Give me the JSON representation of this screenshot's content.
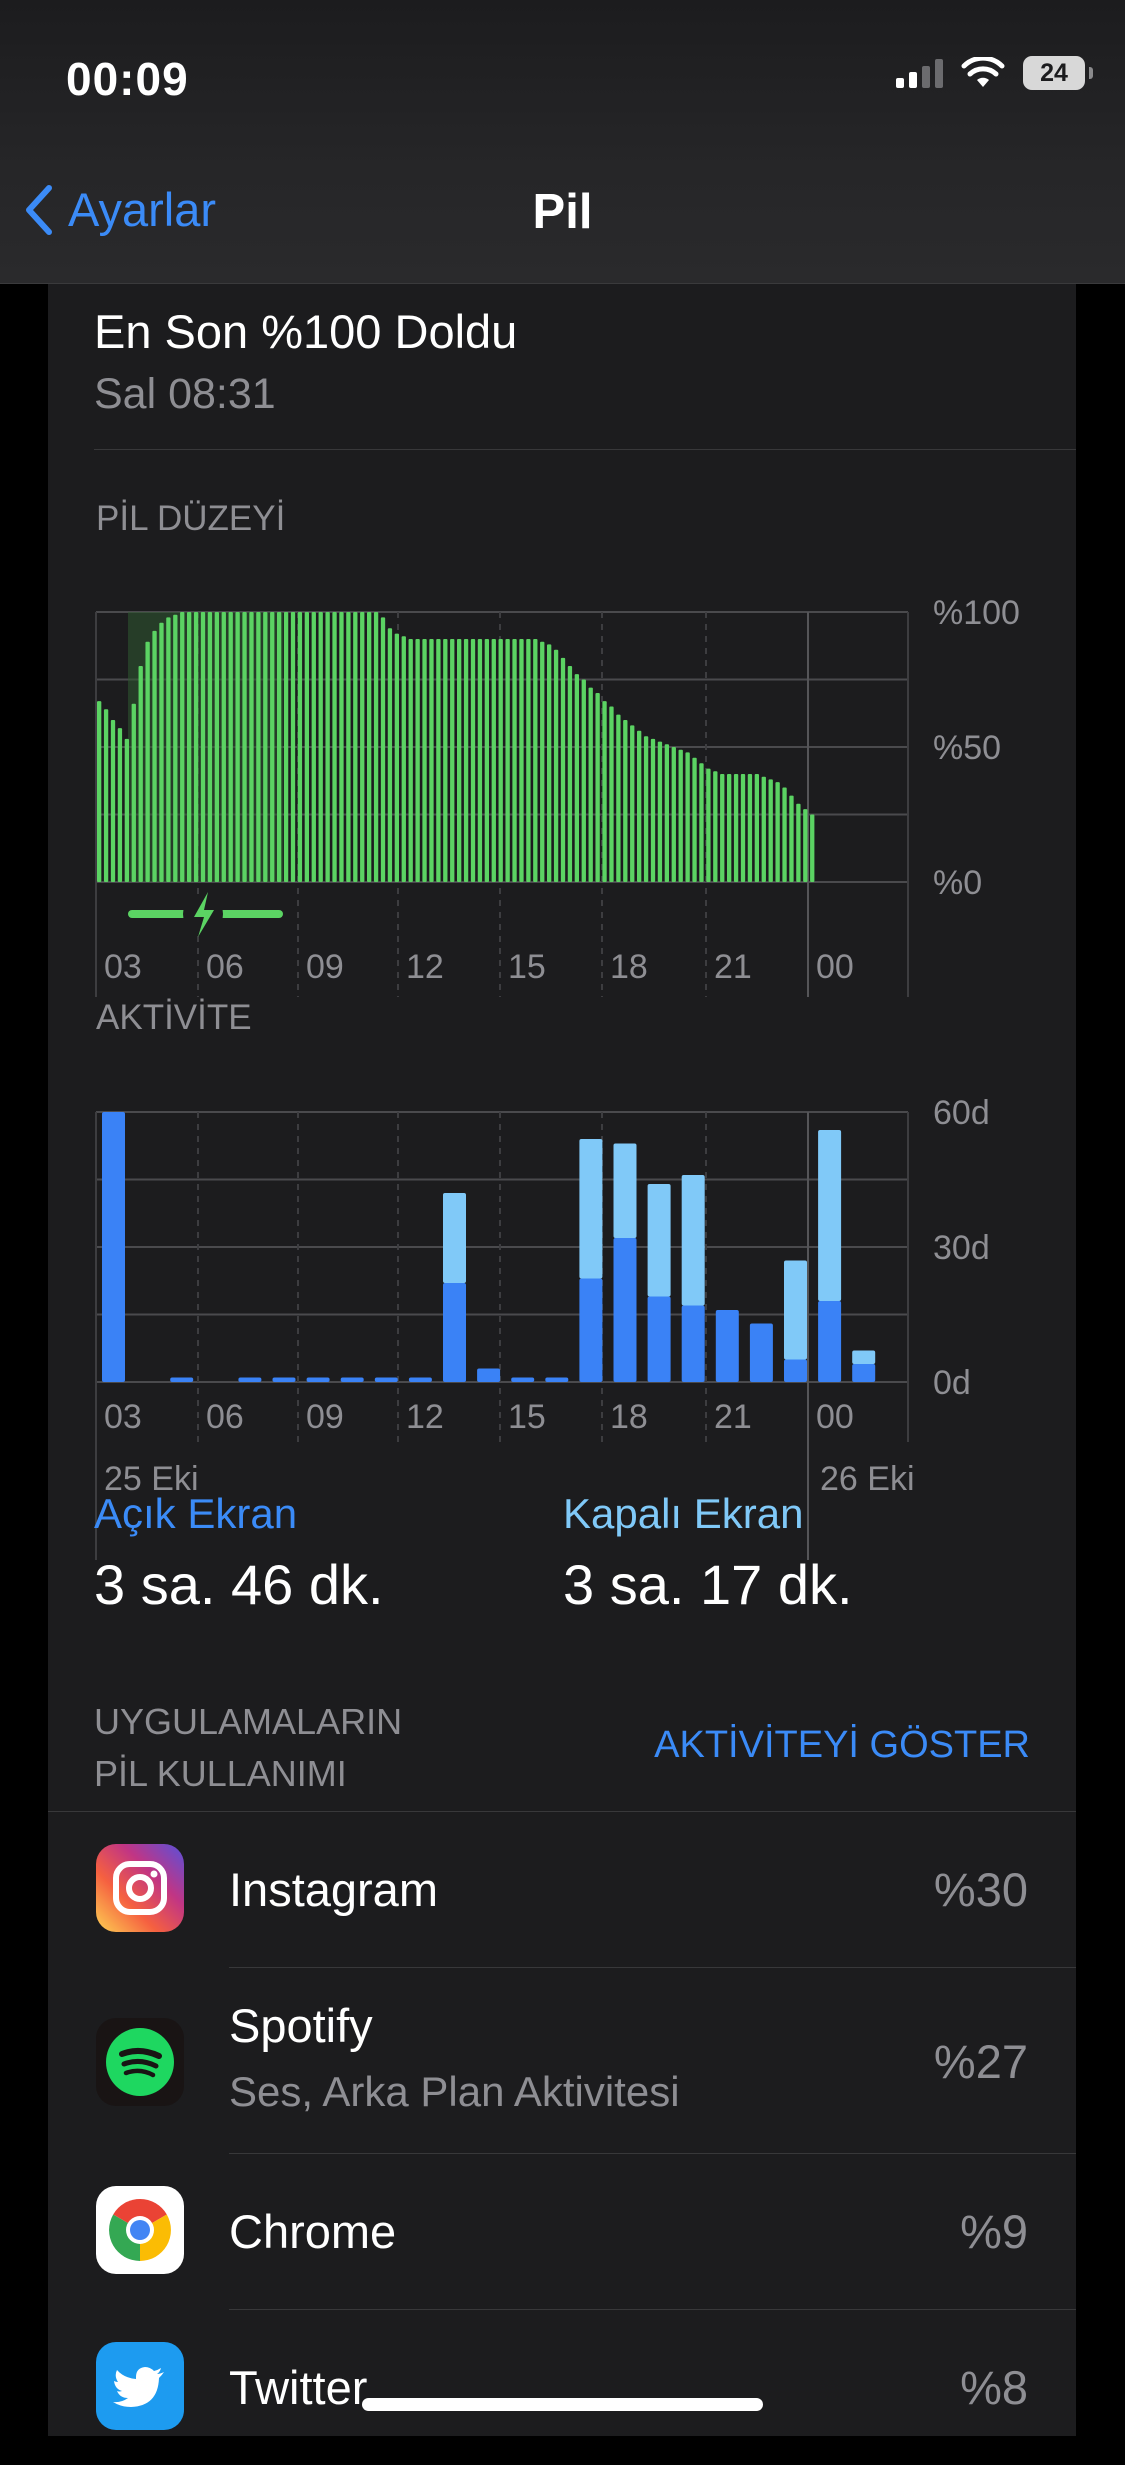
{
  "status_bar": {
    "time": "00:09",
    "battery": "24"
  },
  "nav": {
    "back_label": "Ayarlar",
    "title": "Pil"
  },
  "last_charge": {
    "title": "En Son %100 Doldu",
    "subtitle": "Sal 08:31"
  },
  "battery_chart": {
    "label": "PİL DÜZEYİ",
    "y_ticks": [
      "%100",
      "%50",
      "%0"
    ],
    "x_ticks": [
      "03",
      "06",
      "09",
      "12",
      "15",
      "18",
      "21",
      "00"
    ]
  },
  "activity_chart": {
    "label": "AKTİVİTE",
    "y_ticks": [
      "60d",
      "30d",
      "0d"
    ],
    "x_ticks": [
      "03",
      "06",
      "09",
      "12",
      "15",
      "18",
      "21",
      "00"
    ],
    "date_start": "25 Eki",
    "date_end": "26 Eki"
  },
  "chart_data": [
    {
      "type": "bar",
      "title": "PİL DÜZEYİ",
      "ylim": [
        0,
        100
      ],
      "y_ticks": [
        "%100",
        "%50",
        "%0"
      ],
      "x_ticks": [
        "03",
        "06",
        "09",
        "12",
        "15",
        "18",
        "21",
        "00"
      ],
      "charging_window": "02:00–06:30",
      "values": [
        67,
        64,
        60,
        57,
        53,
        66,
        80,
        89,
        93,
        96,
        98,
        99,
        100,
        100,
        100,
        100,
        100,
        100,
        100,
        100,
        100,
        100,
        100,
        100,
        100,
        100,
        100,
        100,
        100,
        100,
        100,
        100,
        100,
        100,
        100,
        100,
        100,
        100,
        100,
        100,
        100,
        98,
        94,
        92,
        91,
        90,
        90,
        90,
        90,
        90,
        90,
        90,
        90,
        90,
        90,
        90,
        90,
        90,
        90,
        90,
        90,
        90,
        90,
        90,
        89,
        88,
        86,
        83,
        80,
        77,
        75,
        72,
        70,
        67,
        65,
        62,
        60,
        58,
        56,
        54,
        53,
        52,
        51,
        50,
        49,
        48,
        46,
        44,
        42,
        41,
        40,
        40,
        40,
        40,
        40,
        40,
        39,
        38,
        37,
        35,
        32,
        29,
        27,
        25
      ]
    },
    {
      "type": "bar",
      "title": "AKTİVİTE",
      "ylim": [
        0,
        60
      ],
      "x_ticks": [
        "03",
        "06",
        "09",
        "12",
        "15",
        "18",
        "21",
        "00"
      ],
      "series": [
        {
          "name": "Açık Ekran",
          "values": [
            60,
            0,
            1,
            0,
            1,
            1,
            1,
            1,
            1,
            1,
            22,
            3,
            1,
            1,
            23,
            32,
            19,
            17,
            16,
            13,
            5,
            18,
            4
          ]
        },
        {
          "name": "Kapalı Ekran",
          "values": [
            0,
            0,
            0,
            0,
            0,
            0,
            0,
            0,
            0,
            0,
            20,
            0,
            0,
            0,
            31,
            21,
            25,
            29,
            0,
            0,
            22,
            38,
            3
          ]
        }
      ]
    }
  ],
  "screen_times": {
    "on_label": "Açık Ekran",
    "on_value": "3 sa. 46 dk.",
    "off_label": "Kapalı Ekran",
    "off_value": "3 sa. 17 dk."
  },
  "usage": {
    "header_line1": "UYGULAMALARIN",
    "header_line2": "PİL KULLANIMI",
    "show_activity": "AKTİVİTEYİ GÖSTER",
    "apps": [
      {
        "name": "Instagram",
        "subtitle": "",
        "percent": "%30",
        "icon": "instagram-icon"
      },
      {
        "name": "Spotify",
        "subtitle": "Ses, Arka Plan Aktivitesi",
        "percent": "%27",
        "icon": "spotify-icon"
      },
      {
        "name": "Chrome",
        "subtitle": "",
        "percent": "%9",
        "icon": "chrome-icon"
      },
      {
        "name": "Twitter",
        "subtitle": "",
        "percent": "%8",
        "icon": "twitter-icon"
      }
    ]
  },
  "colors": {
    "accent": "#3b8bf7",
    "battery_green": "#5bd363",
    "screen_on": "#3a82f6",
    "screen_off": "#80c9f8",
    "background": "#1c1c1e"
  }
}
